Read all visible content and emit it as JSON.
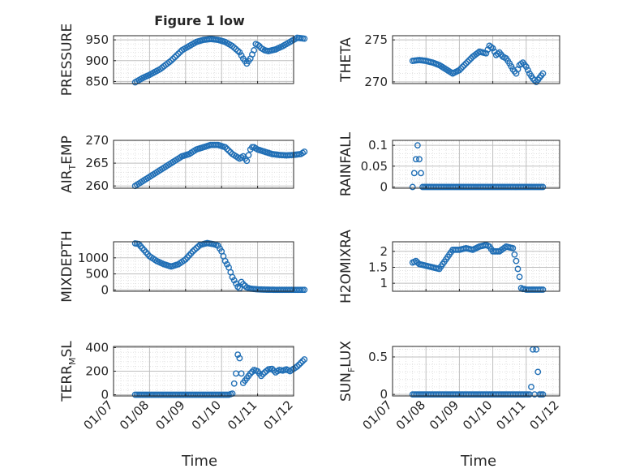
{
  "figure_title": "Figure 1 low",
  "colors": {
    "marker": "#1f6eb5",
    "axis": "#262626",
    "grid": "#bfbfbf",
    "minor_grid": "#dcdcdc"
  },
  "chart_data": [
    {
      "type": "scatter",
      "ylabel": "PRESSURE",
      "ylabel_sub": "",
      "ylim": [
        845,
        960
      ],
      "yticks": [
        850,
        900,
        950
      ],
      "ytick_labels": [
        "850",
        "900",
        "950"
      ],
      "x": [
        0.6,
        0.8,
        1.0,
        1.3,
        1.6,
        1.9,
        2.1,
        2.3,
        2.5,
        2.7,
        2.9,
        3.1,
        3.3,
        3.5,
        3.6,
        3.7,
        3.8,
        3.9,
        3.95,
        4.0,
        4.05,
        4.1,
        4.2,
        4.3,
        4.5,
        4.7,
        4.9,
        5.1,
        5.3
      ],
      "y": [
        848,
        858,
        866,
        880,
        900,
        925,
        935,
        945,
        950,
        952,
        950,
        945,
        935,
        920,
        905,
        893,
        905,
        925,
        940,
        938,
        935,
        930,
        925,
        923,
        927,
        935,
        945,
        955,
        953
      ]
    },
    {
      "type": "scatter",
      "ylabel": "AIR",
      "ylabel_sub": "T",
      "ylabel_suffix": "EMP",
      "ylim": [
        259.5,
        270
      ],
      "yticks": [
        260,
        265,
        270
      ],
      "ytick_labels": [
        "260",
        "265",
        "270"
      ],
      "x": [
        0.6,
        0.8,
        1.0,
        1.3,
        1.6,
        1.9,
        2.1,
        2.3,
        2.5,
        2.7,
        2.9,
        3.1,
        3.3,
        3.5,
        3.6,
        3.7,
        3.8,
        3.85,
        3.9,
        4.0,
        4.2,
        4.4,
        4.6,
        4.8,
        5.0,
        5.2,
        5.3
      ],
      "y": [
        260,
        261,
        262,
        263.5,
        265,
        266.5,
        267,
        268,
        268.5,
        269,
        269,
        268.5,
        267,
        266,
        266.5,
        265.5,
        268,
        268.5,
        268.5,
        268,
        267.5,
        267,
        266.8,
        266.7,
        266.8,
        267,
        267.5
      ]
    },
    {
      "type": "scatter",
      "ylabel": "MIXDEPTH",
      "ylabel_sub": "",
      "ylim": [
        -40,
        1500
      ],
      "yticks": [
        0,
        500,
        1000
      ],
      "ytick_labels": [
        "0",
        "500",
        "1000"
      ],
      "x": [
        0.6,
        0.7,
        0.8,
        1.0,
        1.2,
        1.4,
        1.6,
        1.8,
        2.0,
        2.2,
        2.4,
        2.6,
        2.8,
        2.9,
        3.0,
        3.1,
        3.2,
        3.3,
        3.4,
        3.45,
        3.5,
        3.55,
        3.6,
        3.7,
        3.8,
        4.0,
        4.2,
        4.5,
        4.8,
        5.0,
        5.2,
        5.3
      ],
      "y": [
        1450,
        1430,
        1300,
        1050,
        900,
        800,
        730,
        800,
        950,
        1200,
        1400,
        1460,
        1420,
        1380,
        1200,
        900,
        700,
        400,
        200,
        100,
        50,
        250,
        180,
        80,
        40,
        20,
        10,
        5,
        5,
        5,
        5,
        5
      ]
    },
    {
      "type": "scatter",
      "ylabel": "TERR",
      "ylabel_sub": "M",
      "ylabel_suffix": "SL",
      "ylim": [
        -10,
        410
      ],
      "yticks": [
        0,
        200,
        400
      ],
      "ytick_labels": [
        "0",
        "200",
        "400"
      ],
      "x": [
        0.6,
        0.9,
        1.2,
        1.5,
        1.8,
        2.1,
        2.4,
        2.7,
        3.0,
        3.2,
        3.3,
        3.4,
        3.45,
        3.5,
        3.55,
        3.6,
        3.7,
        3.8,
        3.9,
        4.0,
        4.1,
        4.2,
        4.3,
        4.4,
        4.5,
        4.6,
        4.7,
        4.8,
        4.9,
        5.0,
        5.1,
        5.2,
        5.3
      ],
      "y": [
        0,
        0,
        0,
        0,
        0,
        0,
        0,
        0,
        0,
        0,
        10,
        180,
        340,
        310,
        180,
        100,
        140,
        180,
        210,
        200,
        160,
        190,
        215,
        220,
        190,
        210,
        205,
        215,
        200,
        220,
        240,
        270,
        300
      ]
    },
    {
      "type": "scatter",
      "ylabel": "THETA",
      "ylabel_sub": "",
      "ylim": [
        269.8,
        275.5
      ],
      "yticks": [
        270,
        275
      ],
      "ytick_labels": [
        "270",
        "275"
      ],
      "x": [
        0.6,
        0.8,
        1.0,
        1.2,
        1.4,
        1.6,
        1.8,
        2.0,
        2.2,
        2.4,
        2.6,
        2.8,
        2.9,
        3.0,
        3.1,
        3.2,
        3.3,
        3.4,
        3.5,
        3.6,
        3.7,
        3.8,
        3.9,
        4.0,
        4.1,
        4.2,
        4.3,
        4.4,
        4.5
      ],
      "y": [
        272.5,
        272.6,
        272.5,
        272.3,
        272.0,
        271.5,
        271.0,
        271.4,
        272.2,
        273.0,
        273.6,
        273.4,
        274.3,
        274.0,
        273.2,
        273.5,
        273.0,
        272.8,
        272.2,
        271.5,
        271.0,
        272.0,
        272.3,
        271.8,
        271.0,
        270.4,
        270.0,
        270.5,
        271.0
      ]
    },
    {
      "type": "scatter",
      "ylabel": "RAINFALL",
      "ylabel_sub": "",
      "ylim": [
        -0.003,
        0.112
      ],
      "yticks": [
        0,
        0.05,
        0.1
      ],
      "ytick_labels": [
        "0",
        "0.05",
        "0.1"
      ],
      "x": [
        0.6,
        0.75,
        0.9,
        1.2,
        1.5,
        1.8,
        2.1,
        2.4,
        2.7,
        3.0,
        3.3,
        3.6,
        3.9,
        4.2,
        4.5
      ],
      "y": [
        0,
        0.1,
        0,
        0,
        0,
        0,
        0,
        0,
        0,
        0,
        0,
        0,
        0,
        0,
        0
      ]
    },
    {
      "type": "scatter",
      "ylabel": "H2OMIXRA",
      "ylabel_sub": "",
      "ylim": [
        0.75,
        2.3
      ],
      "yticks": [
        1,
        1.5,
        2
      ],
      "ytick_labels": [
        "1",
        "1.5",
        "2"
      ],
      "x": [
        0.6,
        0.7,
        0.8,
        1.0,
        1.2,
        1.4,
        1.5,
        1.6,
        1.8,
        2.0,
        2.2,
        2.4,
        2.6,
        2.8,
        2.9,
        3.0,
        3.2,
        3.4,
        3.6,
        3.7,
        3.8,
        3.85,
        3.9,
        3.95,
        4.0,
        4.1,
        4.2,
        4.3,
        4.4,
        4.5
      ],
      "y": [
        1.65,
        1.7,
        1.6,
        1.55,
        1.5,
        1.45,
        1.6,
        1.75,
        2.05,
        2.05,
        2.1,
        2.05,
        2.15,
        2.2,
        2.15,
        2.0,
        2.0,
        2.15,
        2.1,
        1.7,
        1.2,
        0.85,
        0.82,
        0.82,
        0.8,
        0.8,
        0.8,
        0.8,
        0.8,
        0.8
      ]
    },
    {
      "type": "scatter",
      "ylabel": "SUN",
      "ylabel_sub": "F",
      "ylabel_suffix": "LUX",
      "ylim": [
        -0.02,
        0.64
      ],
      "yticks": [
        0,
        0.5
      ],
      "ytick_labels": [
        "0",
        "0.5"
      ],
      "x": [
        0.6,
        0.9,
        1.2,
        1.5,
        1.8,
        2.1,
        2.4,
        2.7,
        3.0,
        3.3,
        3.6,
        3.9,
        4.1,
        4.15,
        4.2,
        4.25,
        4.3,
        4.4,
        4.5
      ],
      "y": [
        0,
        0,
        0,
        0,
        0,
        0,
        0,
        0,
        0,
        0,
        0,
        0,
        0,
        0.1,
        0.6,
        0,
        0.6,
        0,
        0
      ]
    }
  ],
  "x_axis": {
    "label": "Time",
    "xlim": [
      0,
      5
    ],
    "ticks": [
      0,
      1,
      2,
      3,
      4,
      5
    ],
    "tick_labels": [
      "01/07",
      "01/08",
      "01/09",
      "01/10",
      "01/11",
      "01/12"
    ]
  }
}
